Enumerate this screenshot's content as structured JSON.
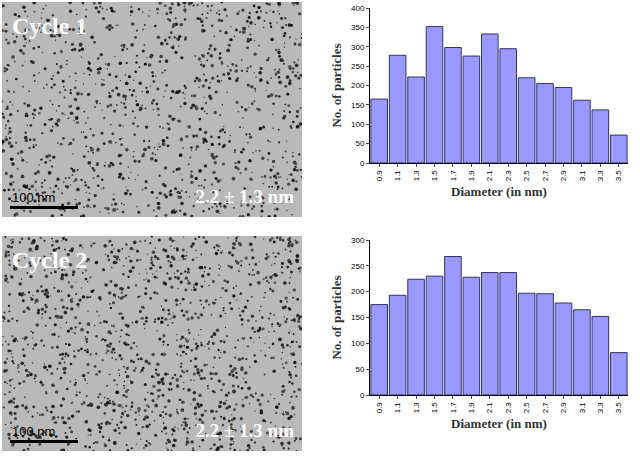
{
  "micrographs": [
    {
      "label": "Cycle 1",
      "size": "2.2 ± 1.3 nm",
      "scale_bar": "100 nm"
    },
    {
      "label": "Cycle 2",
      "size": "2.2 ± 1.3 nm",
      "scale_bar": "100 nm"
    }
  ],
  "chart_data": [
    {
      "type": "bar",
      "x_label": "Diameter (in nm)",
      "y_label": "No. of particles",
      "categories": [
        "0.9",
        "1.1",
        "1.3",
        "1.5",
        "1.7",
        "1.9",
        "2.1",
        "2.3",
        "2.5",
        "2.7",
        "2.9",
        "3.1",
        "3.3",
        "3.5"
      ],
      "values": [
        165,
        278,
        222,
        352,
        298,
        276,
        333,
        295,
        220,
        205,
        195,
        162,
        137,
        72
      ],
      "color": "#9999ff",
      "ylim": [
        0,
        400
      ],
      "yticks": [
        0,
        50,
        100,
        150,
        200,
        250,
        300,
        350,
        400
      ],
      "grid": false
    },
    {
      "type": "bar",
      "x_label": "Diameter (in nm)",
      "y_label": "No. of particles",
      "categories": [
        "0.9",
        "1.1",
        "1.3",
        "1.5",
        "1.7",
        "1.9",
        "2.1",
        "2.3",
        "2.5",
        "2.7",
        "2.9",
        "3.1",
        "3.3",
        "3.5"
      ],
      "values": [
        175,
        193,
        224,
        230,
        268,
        228,
        237,
        237,
        197,
        196,
        178,
        165,
        152,
        82
      ],
      "color": "#9999ff",
      "ylim": [
        0,
        300
      ],
      "yticks": [
        0,
        50,
        100,
        150,
        200,
        250,
        300
      ],
      "grid": false
    }
  ]
}
